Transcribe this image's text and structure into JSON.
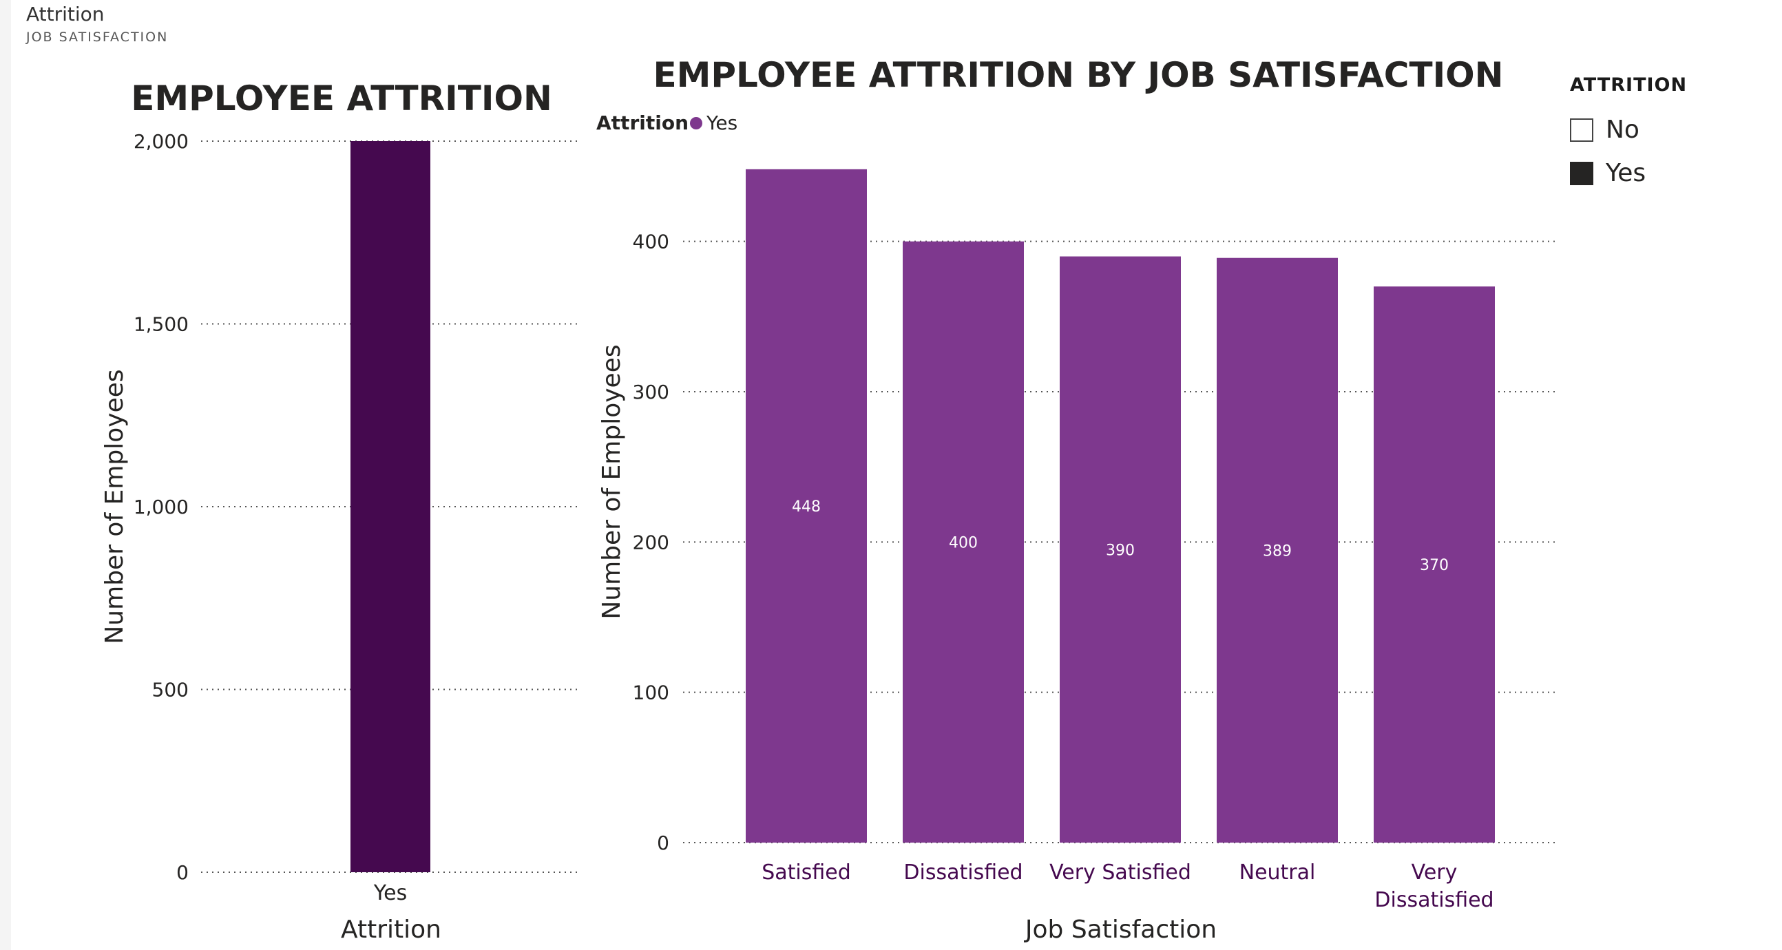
{
  "header": {
    "title": "Attrition",
    "subtitle": "JOB SATISFACTION"
  },
  "slicer": {
    "title": "ATTRITION",
    "items": [
      {
        "label": "No",
        "checked": false
      },
      {
        "label": "Yes",
        "checked": true
      }
    ]
  },
  "chart_data": [
    {
      "type": "bar",
      "title": "EMPLOYEE ATTRITION",
      "xlabel": "Attrition",
      "ylabel": "Number of Employees",
      "categories": [
        "Yes"
      ],
      "values": [
        2000
      ],
      "ylim": [
        0,
        2000
      ],
      "yticks": [
        0,
        500,
        1000,
        1500,
        2000
      ],
      "ytick_labels": [
        "0",
        "500",
        "1,000",
        "1,500",
        "2,000"
      ],
      "color": "#45094f",
      "grid": true
    },
    {
      "type": "bar",
      "title": "EMPLOYEE ATTRITION BY JOB SATISFACTION",
      "xlabel": "Job Satisfaction",
      "ylabel": "Number of Employees",
      "legend": {
        "title": "Attrition",
        "entries": [
          "Yes"
        ],
        "placement": "top-left"
      },
      "categories": [
        "Satisfied",
        "Dissatisfied",
        "Very Satisfied",
        "Neutral",
        "Very Dissatisfied"
      ],
      "series": [
        {
          "name": "Yes",
          "values": [
            448,
            400,
            390,
            389,
            370
          ]
        }
      ],
      "data_labels": [
        "448",
        "400",
        "390",
        "389",
        "370"
      ],
      "ylim": [
        0,
        480
      ],
      "yticks": [
        0,
        100,
        200,
        300,
        400
      ],
      "ytick_labels": [
        "0",
        "100",
        "200",
        "300",
        "400"
      ],
      "color": "#7e388e",
      "grid": true
    }
  ]
}
